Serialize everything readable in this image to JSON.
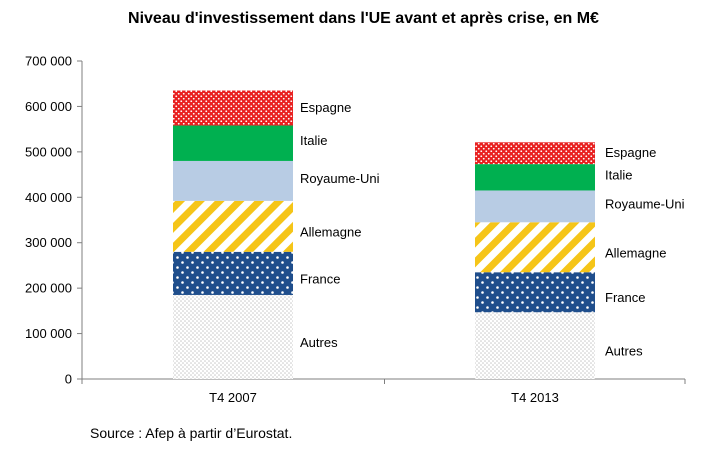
{
  "chart_data": {
    "type": "bar",
    "stacked": true,
    "title": "Niveau d'investissement dans l'UE avant et après crise, en M€",
    "source": "Source : Afep à partir d’Eurostat.",
    "categories": [
      "T4 2007",
      "T4 2013"
    ],
    "ylim": [
      0,
      700000
    ],
    "yticks": [
      0,
      100000,
      200000,
      300000,
      400000,
      500000,
      600000,
      700000
    ],
    "ytick_labels": [
      "0",
      "100 000",
      "200 000",
      "300 000",
      "400 000",
      "500 000",
      "600 000",
      "700 000"
    ],
    "grid": false,
    "legend": "inline labels beside each segment",
    "series": [
      {
        "name": "Autres",
        "values": [
          185000,
          147000
        ],
        "color": "#d9d9d9",
        "pattern": "fine-dots"
      },
      {
        "name": "France",
        "values": [
          95000,
          88000
        ],
        "color": "#1f4e8c",
        "pattern": "white-dots"
      },
      {
        "name": "Allemagne",
        "values": [
          112000,
          110000
        ],
        "color": "#f5c518",
        "pattern": "diagonal-stripes"
      },
      {
        "name": "Royaume-Uni",
        "values": [
          88000,
          70000
        ],
        "color": "#b8cce4",
        "pattern": "solid"
      },
      {
        "name": "Italie",
        "values": [
          78000,
          58000
        ],
        "color": "#00b050",
        "pattern": "solid"
      },
      {
        "name": "Espagne",
        "values": [
          77000,
          48000
        ],
        "color": "#e82020",
        "pattern": "white-dots"
      }
    ]
  }
}
